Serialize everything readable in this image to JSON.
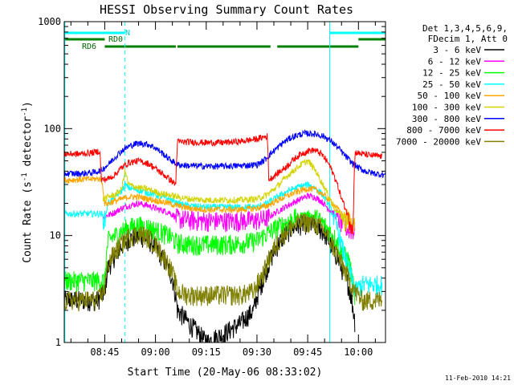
{
  "chart_data": {
    "type": "line",
    "title": "HESSI Observing Summary Count Rates",
    "xlabel": "Start Time (20-May-06 08:33:02)",
    "ylabel": "Count Rate (s",
    "ylabel_sup1": "-1",
    "ylabel_mid": " detector",
    "ylabel_sup2": "-1",
    "ylabel_end": ")",
    "y_scale": "log",
    "ylim": [
      1,
      1000
    ],
    "xlim_minutes": [
      33.03,
      128.0
    ],
    "x_ticks": [
      {
        "minute": 45,
        "label": "08:45"
      },
      {
        "minute": 60,
        "label": "09:00"
      },
      {
        "minute": 75,
        "label": "09:15"
      },
      {
        "minute": 90,
        "label": "09:30"
      },
      {
        "minute": 105,
        "label": "09:45"
      },
      {
        "minute": 120,
        "label": "10:00"
      }
    ],
    "y_ticks": [
      {
        "value": 1,
        "label": "1"
      },
      {
        "value": 10,
        "label": "10"
      },
      {
        "value": 100,
        "label": "100"
      },
      {
        "value": 1000,
        "label": "1000"
      }
    ],
    "legend_header": [
      "Det 1,3,4,5,6,9,",
      "FDecim 1, Att 0"
    ],
    "legend_placement": "right",
    "timestamp": "11-Feb-2010 14:21",
    "flags": {
      "saa_color": "#00ffff",
      "saa_label": "N",
      "rd0_label": "RD0",
      "rd6_label": "RD6",
      "flag_color": "#008000",
      "saa_segments": [
        [
          33.03,
          51.0
        ],
        [
          111.5,
          128.0
        ]
      ],
      "rd0_segments": [
        [
          33.03,
          45.0
        ],
        [
          120.0,
          128.0
        ]
      ],
      "rd6_segments": [
        [
          45.0,
          66.0
        ],
        [
          66.5,
          94.0
        ],
        [
          96.0,
          120.0
        ]
      ]
    },
    "vertical_markers": [
      {
        "minute": 33.2,
        "style": "solid"
      },
      {
        "minute": 51.0,
        "style": "dashed"
      },
      {
        "minute": 111.5,
        "style": "solid"
      },
      {
        "minute": 128.0,
        "style": "dashed"
      }
    ],
    "series": [
      {
        "name": "3 - 6 keV",
        "color": "#000000",
        "x": [
          33,
          43,
          45,
          46,
          48,
          50,
          52,
          55,
          57,
          59,
          61,
          63,
          65,
          66.5,
          70,
          75,
          80,
          85,
          89,
          92,
          94,
          96,
          98,
          100,
          102,
          104,
          106,
          108,
          110,
          112,
          115,
          117,
          119
        ],
        "values": [
          2.5,
          2.5,
          3.0,
          5.0,
          6.5,
          8.0,
          9.2,
          10.0,
          9.5,
          8.5,
          7.0,
          5.5,
          4.0,
          2.0,
          1.5,
          1.0,
          1.2,
          1.5,
          2.0,
          4.0,
          6.0,
          8.0,
          10.0,
          11.5,
          12.5,
          13.0,
          12.8,
          12.0,
          10.5,
          8.0,
          5.0,
          3.5,
          1.5
        ]
      },
      {
        "name": "6 - 12 keV",
        "color": "#ff00ff",
        "x": [
          44.5,
          46,
          48,
          50,
          52,
          55,
          58,
          61,
          64,
          66.5,
          70,
          75,
          80,
          85,
          90,
          93,
          95,
          97,
          99,
          101,
          103,
          105,
          107,
          109,
          111,
          113,
          115,
          117,
          119
        ],
        "values": [
          15.0,
          15.5,
          16.5,
          18.0,
          19.0,
          20.0,
          19.0,
          17.5,
          16.5,
          14.5,
          14.0,
          13.8,
          13.8,
          13.8,
          14.0,
          14.5,
          16.0,
          17.5,
          19.0,
          20.5,
          22.0,
          23.5,
          23.0,
          21.0,
          18.0,
          15.5,
          13.0,
          11.5,
          11.0
        ]
      },
      {
        "name": "12 - 25 keV",
        "color": "#00ff00",
        "x": [
          33,
          44,
          45,
          46,
          48,
          50,
          52,
          55,
          58,
          61,
          64,
          66.5,
          70,
          75,
          80,
          85,
          90,
          93,
          95,
          97,
          99,
          101,
          103,
          105,
          107,
          109,
          111,
          113,
          115,
          117,
          119
        ],
        "values": [
          3.8,
          3.8,
          3.8,
          9.0,
          10.0,
          11.0,
          12.0,
          12.5,
          12.0,
          11.0,
          10.0,
          8.5,
          8.3,
          8.3,
          8.3,
          8.5,
          9.0,
          10.5,
          11.5,
          12.5,
          13.5,
          14.5,
          15.5,
          16.0,
          15.0,
          13.5,
          11.5,
          9.5,
          7.0,
          6.0,
          2.5
        ]
      },
      {
        "name": "25 - 50 keV",
        "color": "#00ffff",
        "x": [
          33,
          44,
          45,
          46,
          48,
          50,
          51,
          52,
          55,
          58,
          61,
          64,
          66.5,
          70,
          75,
          80,
          85,
          90,
          93,
          95,
          97,
          99,
          101,
          103,
          105,
          107,
          109,
          111,
          113,
          115,
          117,
          119,
          121,
          124,
          127
        ],
        "values": [
          16.0,
          16.0,
          14.0,
          20.0,
          23.0,
          26.0,
          30.0,
          28.0,
          26.5,
          25.0,
          23.5,
          22.0,
          20.0,
          19.0,
          18.5,
          18.5,
          18.5,
          18.5,
          20.0,
          22.0,
          24.0,
          26.0,
          27.5,
          29.0,
          30.0,
          28.0,
          25.0,
          20.0,
          14.0,
          8.0,
          5.0,
          3.0,
          3.5,
          3.5,
          3.5
        ]
      },
      {
        "name": "50 - 100 keV",
        "color": "#ffa500",
        "x": [
          33,
          44,
          45,
          46,
          48,
          50,
          52,
          55,
          58,
          61,
          64,
          66.5,
          70,
          75,
          80,
          85,
          90,
          93,
          95,
          97,
          99,
          101,
          103,
          105,
          107,
          109,
          111,
          113,
          115,
          117,
          119
        ],
        "values": [
          33.0,
          34.0,
          20.0,
          20.0,
          21.0,
          22.0,
          23.0,
          23.0,
          22.0,
          21.0,
          20.0,
          19.0,
          18.0,
          17.5,
          17.5,
          17.5,
          18.0,
          19.0,
          20.5,
          22.0,
          23.5,
          25.0,
          26.5,
          27.5,
          27.0,
          25.0,
          22.0,
          19.0,
          16.0,
          14.5,
          12.0
        ]
      },
      {
        "name": "100 - 300 keV",
        "color": "#d4d400",
        "x": [
          44.5,
          46,
          48,
          50,
          51,
          52,
          55,
          58,
          61,
          64,
          66.5,
          70,
          75,
          80,
          85,
          90,
          93,
          95,
          97,
          99,
          101,
          103,
          105,
          107,
          109,
          111,
          113,
          115,
          117,
          119
        ],
        "values": [
          22.0,
          23.0,
          24.0,
          27.0,
          40.0,
          30.0,
          28.0,
          27.0,
          25.0,
          24.0,
          23.0,
          22.0,
          21.5,
          21.5,
          21.5,
          22.0,
          24.0,
          27.0,
          31.0,
          36.0,
          41.0,
          46.0,
          50.0,
          42.0,
          32.0,
          24.0,
          18.0,
          15.0,
          13.0,
          12.0
        ]
      },
      {
        "name": "300 - 800 keV",
        "color": "#0000ff",
        "x": [
          33,
          38,
          42,
          44,
          46,
          48,
          50,
          52,
          54,
          56,
          58,
          60,
          62,
          64,
          66.5,
          70,
          75,
          80,
          85,
          90,
          92,
          94,
          96,
          98,
          100,
          102,
          104,
          106,
          108,
          110,
          112,
          114,
          116,
          118,
          120,
          122,
          124,
          126,
          128
        ],
        "values": [
          38.0,
          38.0,
          39.0,
          41.0,
          46.0,
          54.0,
          62.0,
          68.0,
          72.0,
          73.0,
          71.0,
          66.0,
          59.0,
          52.0,
          46.0,
          45.0,
          44.5,
          44.5,
          45.0,
          46.0,
          50.0,
          58.0,
          66.0,
          75.0,
          82.0,
          87.0,
          90.0,
          90.0,
          88.0,
          84.0,
          76.0,
          66.0,
          56.0,
          48.0,
          43.0,
          40.0,
          38.5,
          37.5,
          37.0
        ]
      },
      {
        "name": "800 - 7000 keV",
        "color": "#ff0000",
        "x": [
          33,
          38,
          42,
          43.5,
          44,
          46,
          48,
          50,
          52,
          55,
          58,
          61,
          64,
          66,
          66.5,
          70,
          75,
          80,
          85,
          90,
          93,
          93.5,
          95,
          97,
          99,
          101,
          103,
          105,
          107,
          109,
          111,
          113,
          115,
          117,
          118.5,
          119,
          121,
          124,
          127
        ],
        "values": [
          58.0,
          58.0,
          60.0,
          62.0,
          33.0,
          34.0,
          37.0,
          43.0,
          48.0,
          50.0,
          47.0,
          40.0,
          34.0,
          30.0,
          75.0,
          75.0,
          74.0,
          74.0,
          76.0,
          80.0,
          85.0,
          33.0,
          36.0,
          40.0,
          45.0,
          52.0,
          58.0,
          62.0,
          63.0,
          58.0,
          48.0,
          35.0,
          22.0,
          15.0,
          12.0,
          60.0,
          58.0,
          56.0,
          55.0
        ]
      },
      {
        "name": "7000 - 20000 keV",
        "color": "#808000",
        "x": [
          33,
          43,
          45,
          46,
          48,
          50,
          52,
          55,
          57,
          59,
          61,
          63,
          65,
          66.5,
          70,
          75,
          80,
          85,
          89,
          92,
          94,
          96,
          98,
          100,
          102,
          104,
          106,
          108,
          110,
          112,
          115,
          117,
          119,
          121,
          124,
          127
        ],
        "values": [
          2.5,
          2.5,
          3.2,
          5.5,
          7.0,
          8.5,
          9.8,
          10.5,
          10.0,
          9.0,
          7.5,
          6.0,
          4.5,
          3.0,
          2.8,
          2.8,
          2.8,
          2.8,
          3.0,
          4.5,
          6.5,
          8.5,
          10.5,
          12.0,
          13.0,
          13.5,
          13.3,
          12.5,
          11.0,
          8.5,
          5.5,
          4.0,
          3.0,
          2.5,
          2.5,
          2.5
        ]
      }
    ]
  }
}
